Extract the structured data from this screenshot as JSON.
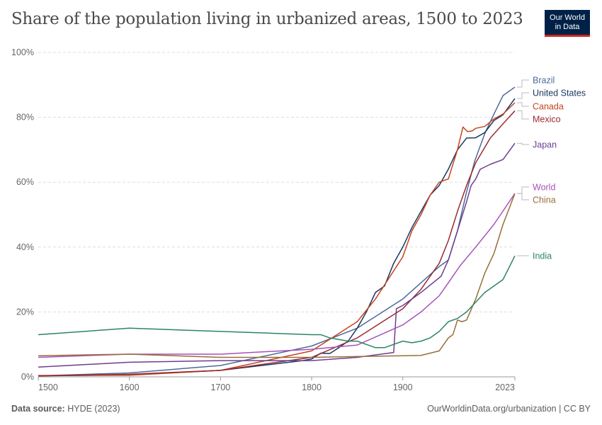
{
  "header": {
    "title": "Share of the population living in urbanized areas, 1500 to 2023",
    "logo": "Our World in Data"
  },
  "footer": {
    "source_label": "Data source:",
    "source": "HYDE (2023)",
    "citation": "OurWorldinData.org/urbanization | CC BY"
  },
  "chart_data": {
    "type": "line",
    "title": "Share of the population living in urbanized areas, 1500 to 2023",
    "xlim": [
      1500,
      2023
    ],
    "ylim": [
      0,
      100
    ],
    "x_ticks": [
      1500,
      1600,
      1700,
      1800,
      1900,
      2023
    ],
    "y_ticks": [
      "0%",
      "20%",
      "40%",
      "60%",
      "80%",
      "100%"
    ],
    "grid": "horizontal dashed",
    "legend": "right (line-end labels)",
    "series": [
      {
        "name": "Brazil",
        "color": "#4C6A9C",
        "points": [
          [
            1500,
            0.3
          ],
          [
            1600,
            1.2
          ],
          [
            1700,
            3.5
          ],
          [
            1800,
            9.5
          ],
          [
            1850,
            15
          ],
          [
            1900,
            24
          ],
          [
            1920,
            29
          ],
          [
            1940,
            34
          ],
          [
            1950,
            36
          ],
          [
            1960,
            45
          ],
          [
            1970,
            57
          ],
          [
            1979,
            66.6
          ],
          [
            1990,
            75
          ],
          [
            2000,
            81
          ],
          [
            2010,
            86.7
          ],
          [
            2023,
            89.3
          ]
        ]
      },
      {
        "name": "United States",
        "color": "#18375F",
        "points": [
          [
            1500,
            0.3
          ],
          [
            1600,
            0.6
          ],
          [
            1700,
            2
          ],
          [
            1790,
            5
          ],
          [
            1800,
            5.5
          ],
          [
            1810,
            7.3
          ],
          [
            1820,
            7.2
          ],
          [
            1830,
            9
          ],
          [
            1840,
            11
          ],
          [
            1850,
            15
          ],
          [
            1860,
            20
          ],
          [
            1870,
            26
          ],
          [
            1880,
            28
          ],
          [
            1890,
            35
          ],
          [
            1900,
            40
          ],
          [
            1910,
            46
          ],
          [
            1920,
            51
          ],
          [
            1930,
            56
          ],
          [
            1940,
            59
          ],
          [
            1950,
            64
          ],
          [
            1960,
            70
          ],
          [
            1970,
            73.6
          ],
          [
            1980,
            73.7
          ],
          [
            1990,
            75.3
          ],
          [
            2000,
            79
          ],
          [
            2010,
            80.8
          ],
          [
            2023,
            85.8
          ]
        ]
      },
      {
        "name": "Canada",
        "color": "#C4441E",
        "points": [
          [
            1500,
            0.4
          ],
          [
            1600,
            0.5
          ],
          [
            1700,
            2
          ],
          [
            1800,
            8
          ],
          [
            1850,
            17
          ],
          [
            1870,
            24
          ],
          [
            1900,
            37
          ],
          [
            1910,
            45
          ],
          [
            1920,
            50
          ],
          [
            1930,
            56
          ],
          [
            1940,
            60
          ],
          [
            1950,
            61
          ],
          [
            1960,
            70
          ],
          [
            1966,
            77
          ],
          [
            1971,
            75.6
          ],
          [
            1976,
            75.8
          ],
          [
            1980,
            76.6
          ],
          [
            1990,
            77.2
          ],
          [
            2000,
            79.5
          ],
          [
            2010,
            81
          ],
          [
            2023,
            84.5
          ]
        ]
      },
      {
        "name": "Mexico",
        "color": "#9A2B30",
        "points": [
          [
            1500,
            0.3
          ],
          [
            1600,
            0.8
          ],
          [
            1700,
            2
          ],
          [
            1800,
            6
          ],
          [
            1850,
            12
          ],
          [
            1900,
            21
          ],
          [
            1920,
            27
          ],
          [
            1940,
            35
          ],
          [
            1950,
            42
          ],
          [
            1960,
            51
          ],
          [
            1970,
            59
          ],
          [
            1980,
            66
          ],
          [
            1996,
            73.6
          ],
          [
            2010,
            78
          ],
          [
            2023,
            82
          ]
        ]
      },
      {
        "name": "Japan",
        "color": "#6D3E91",
        "points": [
          [
            1500,
            3
          ],
          [
            1600,
            4.5
          ],
          [
            1700,
            5
          ],
          [
            1800,
            5
          ],
          [
            1850,
            6
          ],
          [
            1890,
            7.5
          ],
          [
            1893,
            21
          ],
          [
            1900,
            22
          ],
          [
            1920,
            26
          ],
          [
            1942,
            31
          ],
          [
            1950,
            36
          ],
          [
            1960,
            45
          ],
          [
            1970,
            54
          ],
          [
            1975,
            59
          ],
          [
            1980,
            61
          ],
          [
            1985,
            64
          ],
          [
            1996,
            65.5
          ],
          [
            2010,
            67
          ],
          [
            2023,
            72
          ]
        ]
      },
      {
        "name": "World",
        "color": "#A652BA",
        "points": [
          [
            1500,
            6
          ],
          [
            1600,
            7
          ],
          [
            1700,
            7
          ],
          [
            1800,
            8.5
          ],
          [
            1850,
            9.8
          ],
          [
            1900,
            16
          ],
          [
            1920,
            20
          ],
          [
            1940,
            25
          ],
          [
            1950,
            29
          ],
          [
            1963,
            34.3
          ],
          [
            1980,
            40
          ],
          [
            2000,
            47
          ],
          [
            2023,
            56.5
          ]
        ]
      },
      {
        "name": "China",
        "color": "#996D39",
        "points": [
          [
            1500,
            6.5
          ],
          [
            1600,
            7
          ],
          [
            1700,
            6
          ],
          [
            1800,
            6
          ],
          [
            1900,
            6.5
          ],
          [
            1920,
            6.6
          ],
          [
            1940,
            8
          ],
          [
            1950,
            12
          ],
          [
            1955,
            13
          ],
          [
            1960,
            17.5
          ],
          [
            1965,
            17
          ],
          [
            1970,
            17.5
          ],
          [
            1980,
            24
          ],
          [
            1990,
            32
          ],
          [
            2000,
            38
          ],
          [
            2010,
            47
          ],
          [
            2023,
            56.5
          ]
        ]
      },
      {
        "name": "India",
        "color": "#2C8465",
        "points": [
          [
            1500,
            13
          ],
          [
            1600,
            15
          ],
          [
            1700,
            14
          ],
          [
            1800,
            13
          ],
          [
            1810,
            13
          ],
          [
            1820,
            12
          ],
          [
            1840,
            11
          ],
          [
            1850,
            11
          ],
          [
            1870,
            9
          ],
          [
            1880,
            9
          ],
          [
            1900,
            11
          ],
          [
            1910,
            10.5
          ],
          [
            1920,
            11
          ],
          [
            1930,
            12
          ],
          [
            1940,
            14
          ],
          [
            1950,
            17
          ],
          [
            1960,
            18
          ],
          [
            1970,
            20
          ],
          [
            1980,
            23
          ],
          [
            1990,
            26
          ],
          [
            2000,
            28
          ],
          [
            2010,
            30
          ],
          [
            2023,
            37.3
          ]
        ]
      }
    ]
  }
}
